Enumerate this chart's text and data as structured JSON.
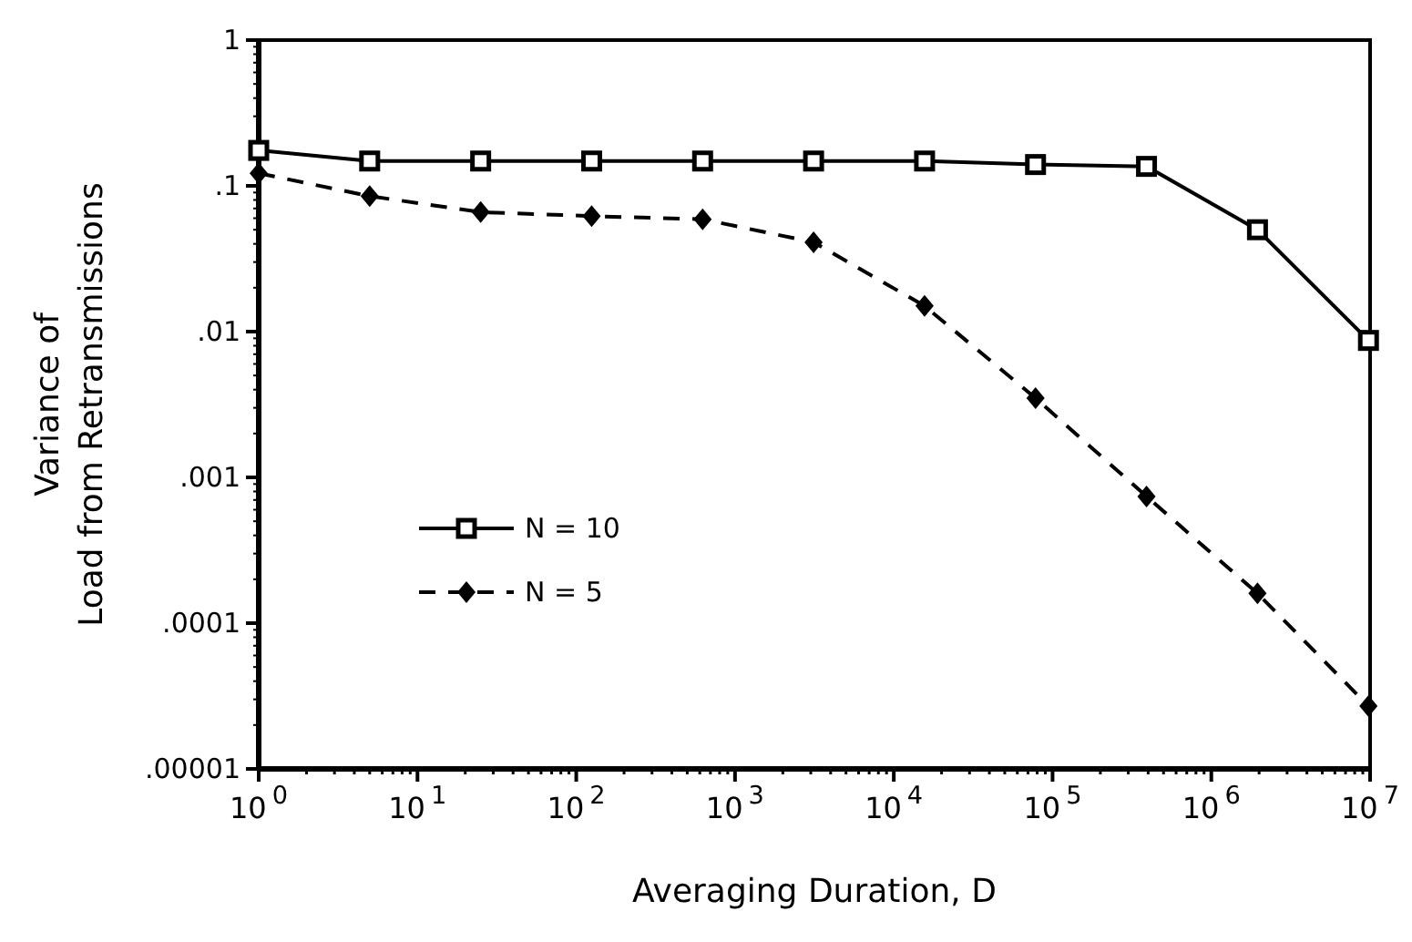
{
  "chart_data": {
    "type": "line",
    "xlabel": "Averaging Duration, D",
    "ylabel": "Variance of\nLoad from Retransmissions",
    "log": "xy",
    "x": [
      1,
      5,
      25,
      125,
      625,
      3125,
      15625,
      78125,
      390625,
      1953125,
      9765625
    ],
    "xlim": [
      1,
      10000000
    ],
    "ylim": [
      1e-05,
      1
    ],
    "xticks": [
      {
        "value": 1,
        "label": "10$^{0}$"
      },
      {
        "value": 10,
        "label": "10$^{1}$"
      },
      {
        "value": 100,
        "label": "10$^{2}$"
      },
      {
        "value": 1000,
        "label": "10$^{3}$"
      },
      {
        "value": 10000,
        "label": "10$^{4}$"
      },
      {
        "value": 100000,
        "label": "10$^{5}$"
      },
      {
        "value": 1000000,
        "label": "10$^{6}$"
      },
      {
        "value": 10000000,
        "label": "10$^{7}$"
      }
    ],
    "yticks": [
      {
        "value": 1e-05,
        "label": ".00001"
      },
      {
        "value": 0.0001,
        "label": ".0001"
      },
      {
        "value": 0.001,
        "label": ".001"
      },
      {
        "value": 0.01,
        "label": ".01"
      },
      {
        "value": 0.1,
        "label": ".1"
      },
      1
    ],
    "legend": "bottom left",
    "grid": false,
    "series": [
      {
        "name": "N = 10",
        "color": "#000000",
        "marker": "square",
        "line_style": "solid",
        "values": [
          0.175,
          0.148,
          0.148,
          0.148,
          0.148,
          0.148,
          0.148,
          0.14,
          0.136,
          0.05,
          0.0087
        ]
      },
      {
        "name": "N = 5",
        "color": "#000000",
        "marker": "diamond",
        "line_style": "dashed",
        "values": [
          0.122,
          0.085,
          0.066,
          0.062,
          0.059,
          0.041,
          0.015,
          0.0035,
          0.00074,
          0.00016,
          2.7e-05
        ]
      }
    ]
  }
}
